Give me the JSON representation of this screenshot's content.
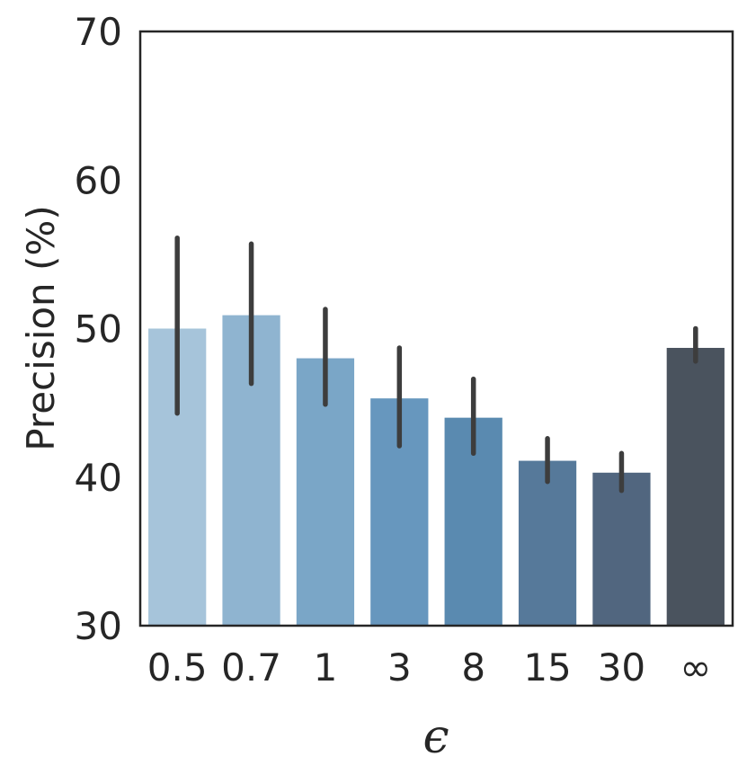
{
  "chart_data": {
    "type": "bar",
    "categories": [
      "0.5",
      "0.7",
      "1",
      "3",
      "8",
      "15",
      "30",
      "∞"
    ],
    "values": [
      50.0,
      50.9,
      48.0,
      45.3,
      44.0,
      41.1,
      40.3,
      48.7
    ],
    "error_low": [
      44.3,
      46.3,
      44.9,
      42.1,
      41.6,
      39.7,
      39.1,
      47.8
    ],
    "error_high": [
      56.1,
      55.7,
      51.3,
      48.7,
      46.6,
      42.6,
      41.6,
      50.0
    ],
    "colors": [
      "#a6c4da",
      "#8fb4d0",
      "#7aa6c7",
      "#6797be",
      "#5a8ab0",
      "#56799a",
      "#51667f",
      "#4a535e"
    ],
    "error_color": "#3d3d3d",
    "title": "",
    "xlabel": "ϵ",
    "ylabel": "Precision (%)",
    "ylim": [
      30,
      70
    ],
    "yticks": [
      "30",
      "40",
      "50",
      "60",
      "70"
    ],
    "grid": false
  }
}
